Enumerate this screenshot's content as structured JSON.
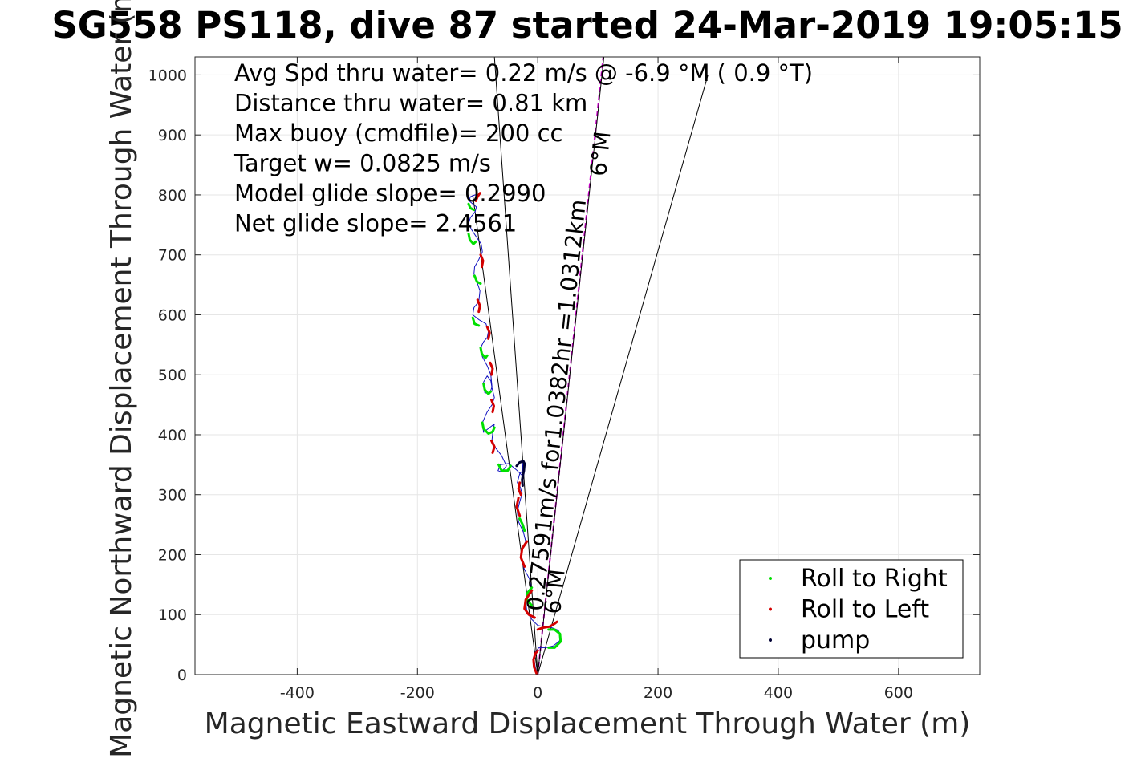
{
  "chart_data": {
    "type": "line",
    "title": "SG558 PS118, dive 87 started 24-Mar-2019 19:05:15",
    "xlabel": "Magnetic Eastward Displacement Through Water (m)",
    "ylabel": "Magnetic Northward Displacement Through Water (m)",
    "xlim": [
      -570,
      735
    ],
    "ylim": [
      0,
      1030
    ],
    "xticks": [
      -400,
      -200,
      0,
      200,
      400,
      600
    ],
    "xtick_labels": [
      "-400",
      "-200",
      "0",
      "200",
      "400",
      "600"
    ],
    "yticks": [
      0,
      100,
      200,
      300,
      400,
      500,
      600,
      700,
      800,
      900,
      1000
    ],
    "ytick_labels": [
      "0",
      "100",
      "200",
      "300",
      "400",
      "500",
      "600",
      "700",
      "800",
      "900",
      "1000"
    ],
    "grid": true,
    "stats": [
      "Avg Spd thru water=  0.22 m/s @  -6.9 °M (  0.9 °T)",
      "Distance thru water=  0.81 km",
      "Max buoy (cmdfile)= 200 cc",
      "Target w= 0.0825 m/s",
      "Model glide slope= 0.2990",
      "Net glide slope= 2.4561"
    ],
    "annotations": [
      {
        "text": "0.27591m/s for1.0382hr =1.0312km",
        "x": 8,
        "y": 105,
        "angle_deg": 6
      },
      {
        "text": "6°M",
        "x": 37,
        "y": 100,
        "angle_deg": 6
      },
      {
        "text": "6°M",
        "x": 113,
        "y": 830,
        "angle_deg": 6
      }
    ],
    "reference_lines": [
      {
        "name": "bearing",
        "x": [
          0,
          109
        ],
        "y": [
          0,
          1030
        ],
        "color": "#cc00cc",
        "dashed": true
      },
      {
        "name": "bearing-black",
        "x": [
          0,
          110
        ],
        "y": [
          0,
          1030
        ],
        "color": "#000000"
      },
      {
        "name": "cone-right",
        "x": [
          0,
          283
        ],
        "y": [
          0,
          1000
        ],
        "color": "#000000"
      },
      {
        "name": "cone-left",
        "x": [
          0,
          -72
        ],
        "y": [
          0,
          1030
        ],
        "color": "#000000"
      },
      {
        "name": "return-left",
        "x": [
          0,
          -108
        ],
        "y": [
          0,
          800
        ],
        "color": "#000000"
      }
    ],
    "series": [
      {
        "name": "Roll to Right",
        "color": "#00e000",
        "segments": [
          {
            "x": [
              18,
              28,
              38,
              37,
              28,
              18
            ],
            "y": [
              45,
              45,
              55,
              68,
              75,
              75
            ]
          },
          {
            "x": [
              -10,
              -18,
              -18,
              -10
            ],
            "y": [
              145,
              135,
              125,
              115
            ]
          },
          {
            "x": [
              -30,
              -25,
              -22
            ],
            "y": [
              260,
              250,
              240
            ]
          },
          {
            "x": [
              -65,
              -60,
              -50,
              -45
            ],
            "y": [
              350,
              340,
              340,
              348
            ]
          },
          {
            "x": [
              -92,
              -90,
              -82,
              -75,
              -72
            ],
            "y": [
              420,
              410,
              402,
              405,
              412
            ]
          },
          {
            "x": [
              -90,
              -88,
              -82,
              -78
            ],
            "y": [
              485,
              475,
              468,
              472
            ]
          },
          {
            "x": [
              -95,
              -93,
              -87,
              -84
            ],
            "y": [
              545,
              535,
              528,
              532
            ]
          },
          {
            "x": [
              -108,
              -105,
              -98
            ],
            "y": [
              595,
              585,
              582
            ]
          },
          {
            "x": [
              -105,
              -101,
              -95
            ],
            "y": [
              665,
              655,
              652
            ]
          },
          {
            "x": [
              -115,
              -113,
              -107,
              -103
            ],
            "y": [
              735,
              725,
              718,
              722
            ]
          },
          {
            "x": [
              -115,
              -112,
              -106
            ],
            "y": [
              785,
              778,
              775
            ]
          }
        ]
      },
      {
        "name": "Roll to Left",
        "color": "#d40000",
        "segments": [
          {
            "x": [
              -2,
              -6,
              -7,
              -4,
              0
            ],
            "y": [
              2,
              12,
              25,
              35,
              40
            ]
          },
          {
            "x": [
              0,
              8,
              20,
              28,
              32
            ],
            "y": [
              75,
              78,
              80,
              85,
              88
            ]
          },
          {
            "x": [
              -5,
              -15,
              -22,
              -20,
              -10
            ],
            "y": [
              95,
              100,
              110,
              125,
              140
            ]
          },
          {
            "x": [
              -22,
              -28,
              -26,
              -18
            ],
            "y": [
              180,
              195,
              210,
              222
            ]
          },
          {
            "x": [
              -30,
              -35,
              -32
            ],
            "y": [
              265,
              280,
              295
            ]
          },
          {
            "x": [
              -28,
              -32,
              -30
            ],
            "y": [
              300,
              310,
              320
            ]
          },
          {
            "x": [
              -75,
              -72,
              -77
            ],
            "y": [
              370,
              380,
              390
            ]
          },
          {
            "x": [
              -75,
              -73,
              -77
            ],
            "y": [
              438,
              448,
              458
            ]
          },
          {
            "x": [
              -77,
              -75,
              -79
            ],
            "y": [
              500,
              510,
              520
            ]
          },
          {
            "x": [
              -82,
              -80,
              -84
            ],
            "y": [
              560,
              570,
              580
            ]
          },
          {
            "x": [
              -98,
              -96,
              -100
            ],
            "y": [
              605,
              615,
              625
            ]
          },
          {
            "x": [
              -93,
              -91,
              -95
            ],
            "y": [
              680,
              690,
              700
            ]
          },
          {
            "x": [
              -103,
              -100,
              -96
            ],
            "y": [
              790,
              797,
              803
            ]
          }
        ]
      },
      {
        "name": "pump",
        "color": "#000033",
        "segments": [
          {
            "x": [
              -35,
              -30,
              -24,
              -22,
              -23,
              -26,
              -25
            ],
            "y": [
              348,
              354,
              356,
              352,
              340,
              325,
              315
            ]
          }
        ]
      },
      {
        "name": "track",
        "color": "#1010c0",
        "segments": [
          {
            "x": [
              0,
              -4,
              -6,
              -4,
              2,
              14,
              26,
              36,
              38,
              34,
              24,
              12,
              0,
              -10,
              -18,
              -20,
              -16,
              -10,
              -14,
              -22,
              -28,
              -26,
              -20,
              -24,
              -32,
              -34,
              -30,
              -26,
              -30,
              -34,
              -30,
              -25,
              -25,
              -24,
              -23,
              -22,
              -26,
              -34,
              -48,
              -62,
              -66,
              -60,
              -52,
              -60,
              -70,
              -76,
              -74,
              -72,
              -80,
              -90,
              -92,
              -84,
              -76,
              -72,
              -76,
              -78,
              -84,
              -90,
              -88,
              -80,
              -76,
              -78,
              -84,
              -92,
              -95,
              -90,
              -84,
              -82,
              -86,
              -98,
              -108,
              -106,
              -98,
              -96,
              -100,
              -106,
              -105,
              -98,
              -92,
              -94,
              -102,
              -110,
              -115,
              -112,
              -104,
              -102,
              -108,
              -114,
              -112,
              -104,
              -100
            ],
            "y": [
              0,
              12,
              25,
              38,
              45,
              45,
              48,
              56,
              66,
              74,
              78,
              80,
              82,
              92,
              105,
              120,
              132,
              145,
              160,
              175,
              192,
              208,
              222,
              238,
              255,
              272,
              288,
              302,
              315,
              320,
              335,
              340,
              348,
              356,
              352,
              340,
              332,
              340,
              352,
              350,
              340,
              338,
              348,
              365,
              378,
              392,
              410,
              418,
              412,
              404,
              420,
              438,
              450,
              462,
              478,
              490,
              498,
              488,
              470,
              468,
              480,
              500,
              515,
              530,
              545,
              555,
              562,
              572,
              585,
              592,
              600,
              612,
              622,
              640,
              652,
              668,
              680,
              692,
              705,
              718,
              730,
              742,
              752,
              762,
              772,
              780,
              785,
              790,
              797,
              800,
              800
            ]
          }
        ]
      }
    ],
    "legend": {
      "position": "bottom-right",
      "entries": [
        {
          "label": "Roll to Right",
          "color": "#00e000"
        },
        {
          "label": "Roll to Left",
          "color": "#d40000"
        },
        {
          "label": "pump",
          "color": "#000033"
        }
      ]
    }
  }
}
